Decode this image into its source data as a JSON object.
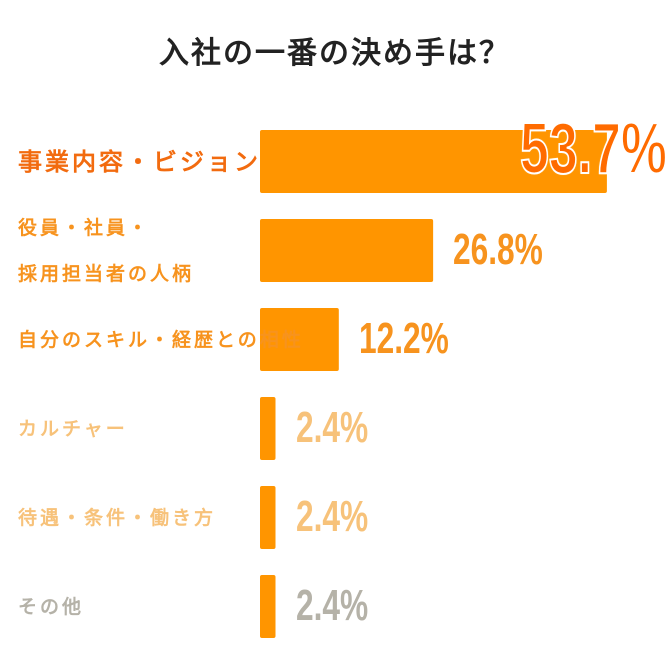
{
  "chart_data": {
    "type": "bar",
    "orientation": "horizontal",
    "title": "入社の一番の決め手は？",
    "categories": [
      "事業内容・ビジョン",
      "役員・社員・\n採用担当者の人柄",
      "自分のスキル・経歴との相性",
      "カルチャー",
      "待遇・条件・働き方",
      "その他"
    ],
    "values": [
      53.7,
      26.8,
      12.2,
      2.4,
      2.4,
      2.4
    ],
    "value_labels": [
      "53.7%",
      "26.8%",
      "12.2%",
      "2.4%",
      "2.4%",
      "2.4%"
    ],
    "xlabel": "",
    "ylabel": "",
    "xlim": [
      0,
      100
    ],
    "grid": false,
    "colors": {
      "bar": "#FF9500",
      "label_colors": [
        "#F26B0F",
        "#F7931E",
        "#F7931E",
        "#F7C27A",
        "#F7C27A",
        "#B5B2A8"
      ],
      "value_colors": [
        "#FF6B00",
        "#F7931E",
        "#F7931E",
        "#F7C27A",
        "#F7C27A",
        "#B5B2A8"
      ]
    }
  }
}
